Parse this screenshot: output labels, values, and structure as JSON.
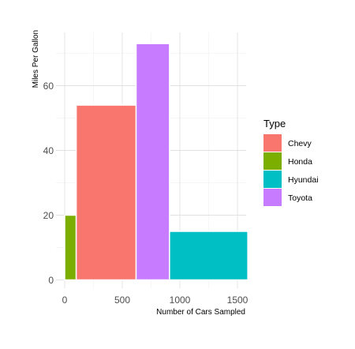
{
  "chart_data": {
    "type": "bar",
    "variant": "variable-width",
    "title": "",
    "xlabel": "Number of Cars Sampled",
    "ylabel": "Miles Per Gallon",
    "xlim": [
      0,
      1600
    ],
    "ylim": [
      0,
      75
    ],
    "x_ticks": [
      0,
      500,
      1000,
      1500
    ],
    "y_ticks": [
      0,
      20,
      40,
      60
    ],
    "grid": true,
    "legend": {
      "title": "Type",
      "position": "right"
    },
    "series": [
      {
        "name": "Honda",
        "x_start": 0,
        "x_end": 100,
        "value": 20,
        "color": "#7CAE00"
      },
      {
        "name": "Chevy",
        "x_start": 100,
        "x_end": 620,
        "value": 54,
        "color": "#F8766D"
      },
      {
        "name": "Toyota",
        "x_start": 620,
        "x_end": 910,
        "value": 73,
        "color": "#C77CFF"
      },
      {
        "name": "Hyundai",
        "x_start": 910,
        "x_end": 1590,
        "value": 15,
        "color": "#00BFC4"
      }
    ],
    "legend_order": [
      "Chevy",
      "Honda",
      "Hyundai",
      "Toyota"
    ]
  }
}
